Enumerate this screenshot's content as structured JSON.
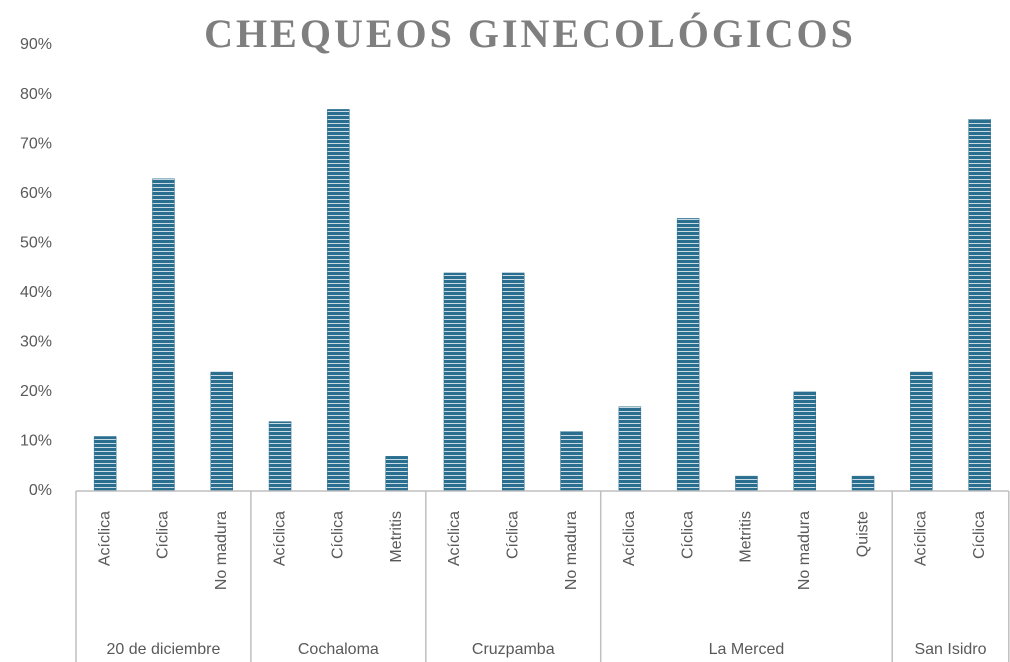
{
  "chart_data": {
    "type": "bar",
    "title": "CHEQUEOS GINECOLÓGICOS",
    "color": "#2a6f8f",
    "groups": [
      {
        "name": "20 de diciembre",
        "categories": [
          "Acíclica",
          "Cíclica",
          "No madura"
        ],
        "values": [
          11,
          63,
          24
        ]
      },
      {
        "name": "Cochaloma",
        "categories": [
          "Acíclica",
          "Cíclica",
          "Metritis"
        ],
        "values": [
          14,
          77,
          7
        ]
      },
      {
        "name": "Cruzpamba",
        "categories": [
          "Acíclica",
          "Cíclica",
          "No madura"
        ],
        "values": [
          44,
          44,
          12
        ]
      },
      {
        "name": "La Merced",
        "categories": [
          "Acíclica",
          "Cíclica",
          "Metritis",
          "No madura",
          "Quiste"
        ],
        "values": [
          17,
          55,
          3,
          20,
          3
        ]
      },
      {
        "name": "San Isidro",
        "categories": [
          "Acíclica",
          "Cíclica"
        ],
        "values": [
          24,
          75
        ]
      }
    ],
    "ylim": [
      0,
      90
    ],
    "yticks": [
      {
        "value": 0,
        "label": "0%"
      },
      {
        "value": 10,
        "label": "10%"
      },
      {
        "value": 20,
        "label": "20%"
      },
      {
        "value": 30,
        "label": "30%"
      },
      {
        "value": 40,
        "label": "40%"
      },
      {
        "value": 50,
        "label": "50%"
      },
      {
        "value": 60,
        "label": "60%"
      },
      {
        "value": 70,
        "label": "70%"
      },
      {
        "value": 80,
        "label": "80%"
      },
      {
        "value": 90,
        "label": "90%"
      }
    ],
    "grid": false
  }
}
